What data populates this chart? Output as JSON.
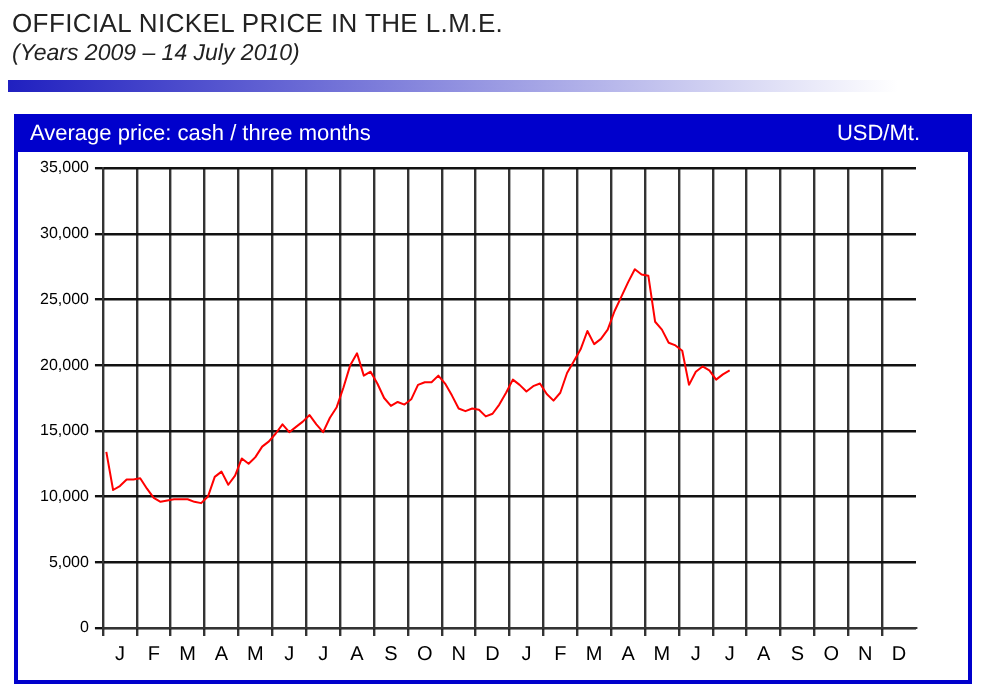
{
  "chart_data": {
    "type": "line",
    "title": "OFFICIAL NICKEL PRICE IN THE L.M.E.",
    "subtitle": "(Years 2009 – 14 July 2010)",
    "annotations": [
      "Average price: cash / three months"
    ],
    "ylabel": "USD/Mt.",
    "categories": [
      null,
      null,
      "J",
      null,
      null,
      null,
      null,
      "F",
      null,
      null,
      null,
      null,
      "M",
      null,
      null,
      null,
      null,
      "A",
      null,
      null,
      null,
      null,
      "M",
      null,
      null,
      null,
      null,
      "J",
      null,
      null,
      null,
      null,
      "J",
      null,
      null,
      null,
      null,
      "A",
      null,
      null,
      null,
      null,
      "S",
      null,
      null,
      null,
      null,
      "O",
      null,
      null,
      null,
      null,
      "N",
      null,
      null,
      null,
      null,
      "D",
      null,
      null,
      null,
      null,
      "J",
      null,
      null,
      null,
      null,
      "F",
      null,
      null,
      null,
      null,
      "M",
      null,
      null,
      null,
      null,
      "A",
      null,
      null,
      null,
      null,
      "M",
      null,
      null,
      null,
      null,
      "J",
      null,
      null,
      null,
      null,
      "J",
      null,
      null,
      null,
      null,
      "A",
      null,
      null,
      null,
      null,
      "S",
      null,
      null,
      null,
      null,
      "O",
      null,
      null,
      null,
      null,
      "N",
      null,
      null,
      null,
      null,
      "D",
      null,
      null
    ],
    "series": [
      {
        "color": "#ff0000",
        "values": [
          13400,
          10500,
          10800,
          11300,
          11300,
          11400,
          10600,
          9900,
          9600,
          9700,
          9800,
          9800,
          9800,
          9600,
          9500,
          10000,
          11500,
          11900,
          10900,
          11600,
          12900,
          12500,
          13000,
          13800,
          14200,
          14800,
          15500,
          14900,
          15300,
          15700,
          16200,
          15500,
          14900,
          16000,
          16800,
          18300,
          20000,
          20900,
          19200,
          19500,
          18600,
          17500,
          16900,
          17200,
          17000,
          17400,
          18500,
          18700,
          18700,
          19200,
          18600,
          17700,
          16700,
          16500,
          16700,
          16600,
          16100,
          16300,
          17000,
          17900,
          18900,
          18500,
          18000,
          18400,
          18600,
          17800,
          17300,
          17900,
          19400,
          20300,
          21200,
          22600,
          21600,
          22000,
          22700,
          24100,
          25200,
          26300,
          27300,
          26900,
          26800,
          23300,
          22700,
          21700,
          21500,
          21100,
          18500,
          19500,
          19900,
          19600,
          18900,
          19300,
          19600,
          null,
          null,
          null,
          null,
          null,
          null,
          null,
          null,
          null,
          null,
          null,
          null,
          null,
          null,
          null,
          null,
          null,
          null,
          null,
          null,
          null,
          null,
          null,
          null,
          null,
          null,
          null
        ]
      }
    ],
    "ylim": [
      0,
      35000
    ],
    "yticks": [
      {
        "value": 0,
        "label": "0"
      },
      {
        "value": 5000,
        "label": "5,000"
      },
      {
        "value": 10000,
        "label": "10,000"
      },
      {
        "value": 15000,
        "label": "15,000"
      },
      {
        "value": 20000,
        "label": "20,000"
      },
      {
        "value": 25000,
        "label": "25,000"
      },
      {
        "value": 30000,
        "label": "30,000"
      },
      {
        "value": 35000,
        "label": "35,000"
      }
    ],
    "grid": true,
    "legend": false,
    "marker": "none",
    "line_style": "solid"
  }
}
